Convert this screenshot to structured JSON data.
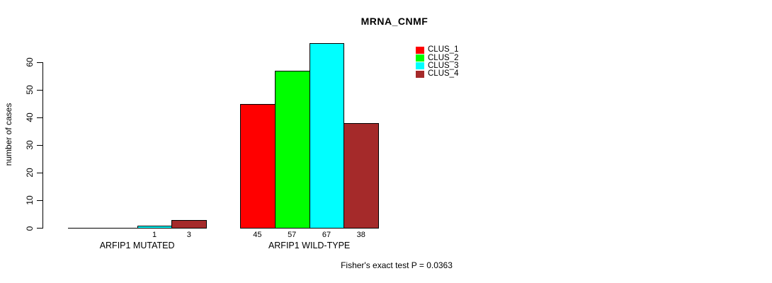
{
  "title": "MRNA_CNMF",
  "footnote": "Fisher's exact test P = 0.0363",
  "chart_data": {
    "type": "bar",
    "title": "MRNA_CNMF",
    "xlabel": "",
    "ylabel": "number of cases",
    "ylim": [
      0,
      60
    ],
    "yticks": [
      0,
      10,
      20,
      30,
      40,
      50,
      60
    ],
    "grid": false,
    "legend_position": "top-right",
    "categories": [
      "ARFIP1 MUTATED",
      "ARFIP1 WILD-TYPE"
    ],
    "series": [
      {
        "name": "CLUS_1",
        "color": "#ff0000",
        "values": [
          0,
          45
        ]
      },
      {
        "name": "CLUS_2",
        "color": "#00ff00",
        "values": [
          0,
          57
        ]
      },
      {
        "name": "CLUS_3",
        "color": "#00ffff",
        "values": [
          1,
          67
        ]
      },
      {
        "name": "CLUS_4",
        "color": "#a52a2a",
        "values": [
          3,
          38
        ]
      }
    ],
    "bar_value_labels": [
      [
        "",
        "",
        "1",
        "3"
      ],
      [
        "45",
        "57",
        "67",
        "38"
      ]
    ],
    "legend": [
      {
        "label": "CLUS_1",
        "color": "#ff0000"
      },
      {
        "label": "CLUS_2",
        "color": "#00ff00"
      },
      {
        "label": "CLUS_3",
        "color": "#00ffff"
      },
      {
        "label": "CLUS_4",
        "color": "#a52a2a"
      }
    ],
    "annotation": "Fisher's exact test P = 0.0363"
  }
}
